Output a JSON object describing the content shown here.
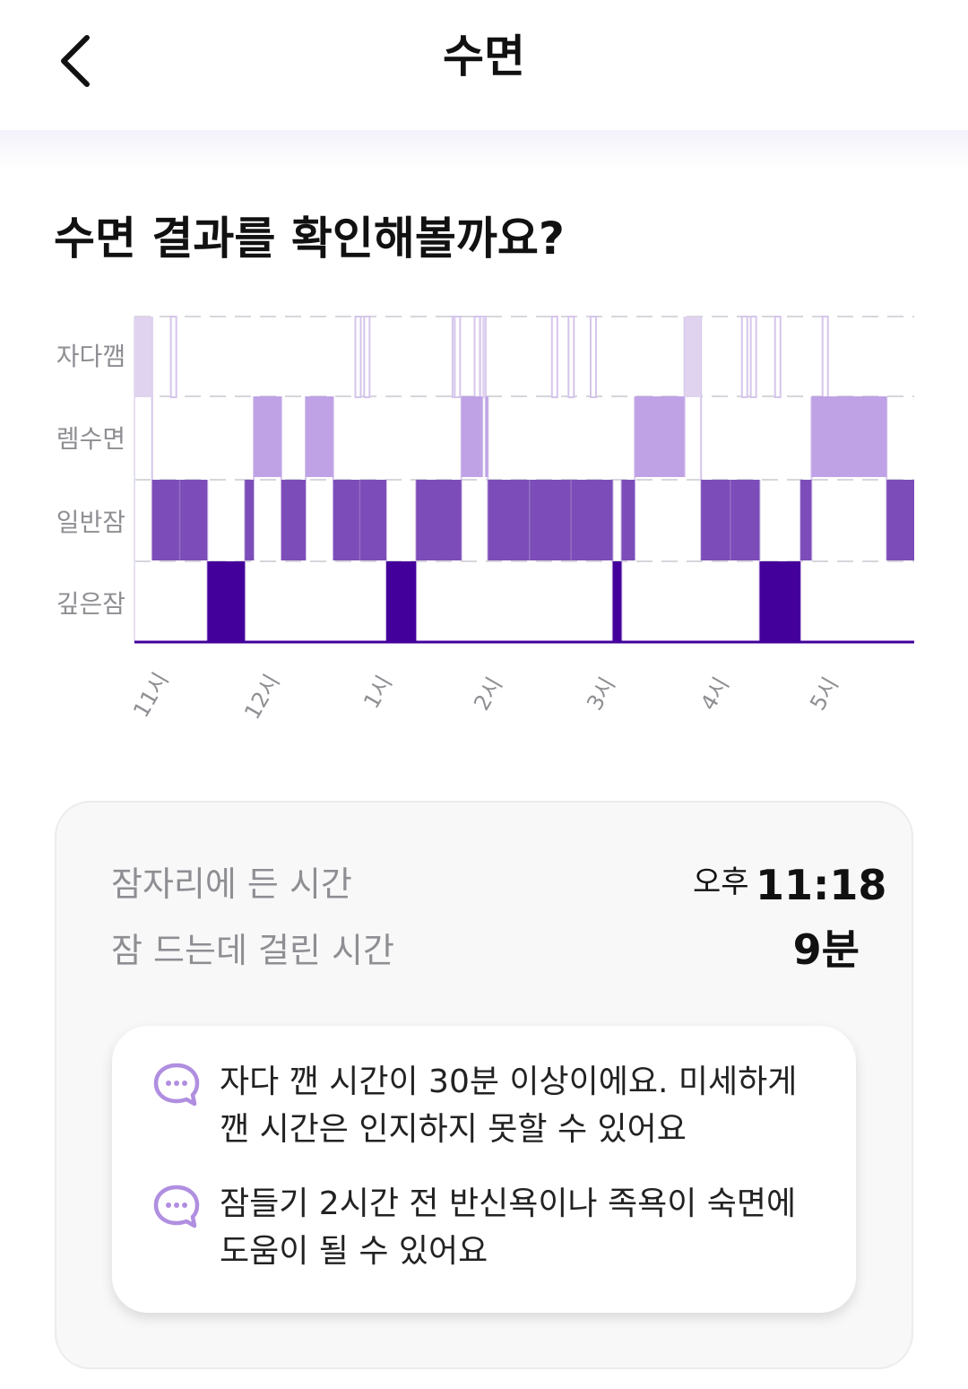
{
  "header": {
    "title": "수면",
    "back_icon": "chevron-left-icon"
  },
  "main": {
    "question": "수면 결과를 확인해볼까요?"
  },
  "chart_data": {
    "type": "hypnogram",
    "stages": [
      "자다깸",
      "렘수면",
      "일반잠",
      "깊은잠"
    ],
    "x_tick_labels": [
      "11시",
      "12시",
      "1시",
      "2시",
      "3시",
      "4시",
      "5시"
    ],
    "x_ticks_hours": [
      23,
      24,
      25,
      26,
      27,
      28,
      29
    ],
    "xlim": [
      22.92,
      29.98
    ],
    "grid": "dashed horizontal",
    "colors": {
      "자다깸": "#e0d3ef",
      "렘수면": "#bea2e5",
      "일반잠": "#7c4db8",
      "깊은잠": "#44009b",
      "stage_line": "#d5c5eb"
    },
    "segments": [
      {
        "stage": "자다깸",
        "start": 22.92,
        "end": 23.08
      },
      {
        "stage": "일반잠",
        "start": 23.08,
        "end": 23.58
      },
      {
        "stage": "깊은잠",
        "start": 23.58,
        "end": 23.92
      },
      {
        "stage": "일반잠",
        "start": 23.92,
        "end": 24.0
      },
      {
        "stage": "렘수면",
        "start": 24.0,
        "end": 24.25
      },
      {
        "stage": "일반잠",
        "start": 24.25,
        "end": 24.47
      },
      {
        "stage": "렘수면",
        "start": 24.47,
        "end": 24.72
      },
      {
        "stage": "일반잠",
        "start": 24.72,
        "end": 25.2
      },
      {
        "stage": "깊은잠",
        "start": 25.2,
        "end": 25.47
      },
      {
        "stage": "일반잠",
        "start": 25.47,
        "end": 25.88
      },
      {
        "stage": "렘수면",
        "start": 25.88,
        "end": 26.07
      },
      {
        "stage": "자다깸",
        "start": 26.07,
        "end": 26.1
      },
      {
        "stage": "렘수면",
        "start": 26.1,
        "end": 26.12
      },
      {
        "stage": "일반잠",
        "start": 26.12,
        "end": 27.25
      },
      {
        "stage": "깊은잠",
        "start": 27.25,
        "end": 27.33
      },
      {
        "stage": "일반잠",
        "start": 27.33,
        "end": 27.45
      },
      {
        "stage": "렘수면",
        "start": 27.45,
        "end": 27.9
      },
      {
        "stage": "자다깸",
        "start": 27.9,
        "end": 28.05
      },
      {
        "stage": "일반잠",
        "start": 28.05,
        "end": 28.58
      },
      {
        "stage": "깊은잠",
        "start": 28.58,
        "end": 28.95
      },
      {
        "stage": "일반잠",
        "start": 28.95,
        "end": 29.05
      },
      {
        "stage": "렘수면",
        "start": 29.05,
        "end": 29.73
      },
      {
        "stage": "일반잠",
        "start": 29.73,
        "end": 29.98
      }
    ],
    "brief_awakenings": [
      23.25,
      24.92,
      25.0,
      25.8,
      25.82,
      26.0,
      26.05,
      26.7,
      26.85,
      27.05,
      28.42,
      28.5,
      28.72,
      29.15
    ]
  },
  "summary": {
    "bedtime_label": "잠자리에 든 시간",
    "bedtime_ampm": "오후",
    "bedtime_value": "11:18",
    "latency_label": "잠 드는데 걸린 시간",
    "latency_value": "9분"
  },
  "tips": [
    {
      "icon": "chat-bubble-icon",
      "lines": [
        "자다 깬 시간이 30분 이상이에요. 미세하게",
        "깬 시간은 인지하지 못할 수 있어요"
      ]
    },
    {
      "icon": "chat-bubble-icon",
      "lines": [
        "잠들기 2시간 전 반신욕이나 족욕이 숙면에",
        "도움이 될 수 있어요"
      ]
    }
  ]
}
